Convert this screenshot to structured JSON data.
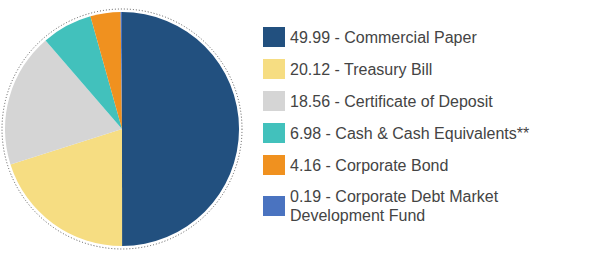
{
  "chart_data": {
    "type": "pie",
    "categories": [
      "49.99 - Commercial Paper",
      "20.12 - Treasury Bill",
      "18.56 - Certificate of Deposit",
      "6.98 - Cash & Cash Equivalents**",
      "4.16 - Corporate Bond",
      "0.19 - Corporate Debt Market Development Fund"
    ],
    "values": [
      49.99,
      20.12,
      18.56,
      6.98,
      4.16,
      0.19
    ],
    "colors": [
      "#22507f",
      "#f6dd82",
      "#d5d5d5",
      "#42c1bc",
      "#f0911f",
      "#4a73c0"
    ],
    "legend": "right"
  }
}
